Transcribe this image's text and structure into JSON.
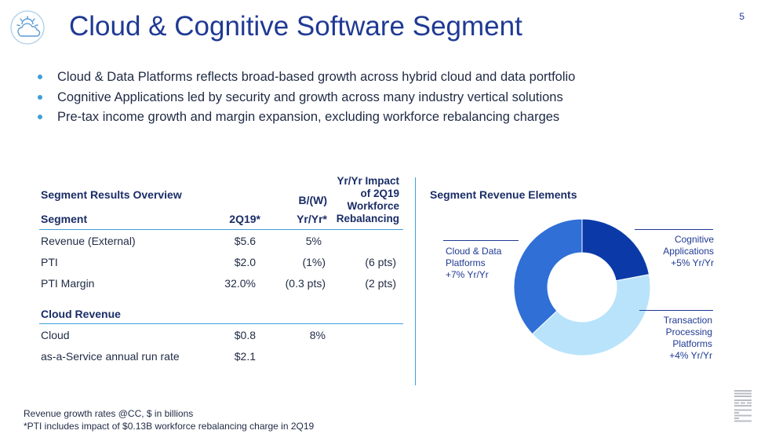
{
  "header": {
    "title": "Cloud & Cognitive Software Segment",
    "page_number": "5",
    "logo_icon": "cloud-icon"
  },
  "bullets": [
    "Cloud & Data Platforms reflects broad-based growth across hybrid cloud and data portfolio",
    "Cognitive Applications led by security and growth across many industry vertical solutions",
    "Pre-tax income growth and margin expansion, excluding workforce rebalancing charges"
  ],
  "table": {
    "section_title": "Segment Results Overview",
    "columns": {
      "segment": "Segment",
      "q": "2Q19*",
      "bw_line1": "B/(W)",
      "bw_line2": "Yr/Yr*",
      "impact_lines": [
        "Yr/Yr Impact",
        "of  2Q19",
        "Workforce",
        "Rebalancing"
      ]
    },
    "rows": [
      {
        "label": "Revenue (External)",
        "q": "$5.6",
        "bw": "5%",
        "impact": ""
      },
      {
        "label": "PTI",
        "q": "$2.0",
        "bw": "(1%)",
        "impact": "(6 pts)"
      },
      {
        "label": "PTI Margin",
        "q": "32.0%",
        "bw": "(0.3 pts)",
        "impact": "(2 pts)"
      }
    ],
    "cloud_title": "Cloud Revenue",
    "cloud_rows": [
      {
        "label": "Cloud",
        "q": "$0.8",
        "bw": "8%"
      },
      {
        "label": "as-a-Service annual run rate",
        "q": "$2.1",
        "bw": ""
      }
    ]
  },
  "chart_data": {
    "type": "pie",
    "title": "Segment Revenue Elements",
    "slices": [
      {
        "name": "Cognitive Applications",
        "lines": [
          "Cognitive",
          "Applications",
          "+5% Yr/Yr"
        ],
        "value": 0.22,
        "color": "#0b3aa8"
      },
      {
        "name": "Transaction Processing Platforms",
        "lines": [
          "Transaction",
          "Processing",
          "Platforms",
          "+4% Yr/Yr"
        ],
        "value": 0.41,
        "color": "#b8e3fb"
      },
      {
        "name": "Cloud & Data Platforms",
        "lines": [
          "Cloud & Data",
          "Platforms",
          "+7% Yr/Yr"
        ],
        "value": 0.37,
        "color": "#2f6fd6"
      }
    ]
  },
  "footnotes": [
    "Revenue growth rates @CC, $ in billions",
    "*PTI includes impact of $0.13B workforce rebalancing charge in 2Q19"
  ],
  "brand": {
    "name": "IBM",
    "color": "#b9bcc3"
  }
}
